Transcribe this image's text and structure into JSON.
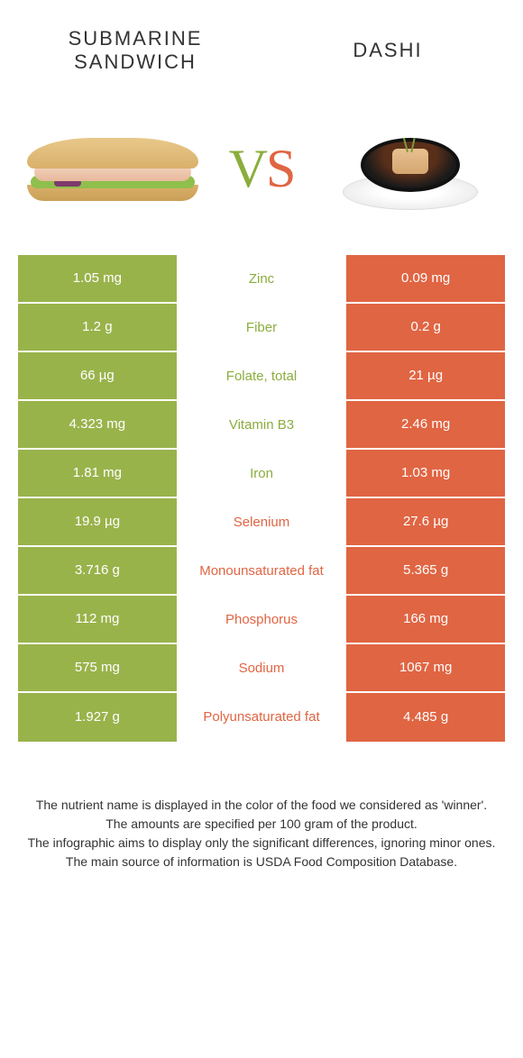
{
  "colors": {
    "left": "#99b34b",
    "right": "#e06543",
    "left_text": "#8aad3c",
    "right_text": "#e06543"
  },
  "header": {
    "left_title": "SUBMARINE SANDWICH",
    "right_title": "DASHI",
    "vs_v": "V",
    "vs_s": "S"
  },
  "rows": [
    {
      "left": "1.05 mg",
      "label": "Zinc",
      "right": "0.09 mg",
      "winner": "left"
    },
    {
      "left": "1.2 g",
      "label": "Fiber",
      "right": "0.2 g",
      "winner": "left"
    },
    {
      "left": "66 µg",
      "label": "Folate, total",
      "right": "21 µg",
      "winner": "left"
    },
    {
      "left": "4.323 mg",
      "label": "Vitamin B3",
      "right": "2.46 mg",
      "winner": "left"
    },
    {
      "left": "1.81 mg",
      "label": "Iron",
      "right": "1.03 mg",
      "winner": "left"
    },
    {
      "left": "19.9 µg",
      "label": "Selenium",
      "right": "27.6 µg",
      "winner": "right"
    },
    {
      "left": "3.716 g",
      "label": "Monounsaturated fat",
      "right": "5.365 g",
      "winner": "right"
    },
    {
      "left": "112 mg",
      "label": "Phosphorus",
      "right": "166 mg",
      "winner": "right"
    },
    {
      "left": "575 mg",
      "label": "Sodium",
      "right": "1067 mg",
      "winner": "right"
    },
    {
      "left": "1.927 g",
      "label": "Polyunsaturated fat",
      "right": "4.485 g",
      "winner": "right"
    }
  ],
  "footnote": {
    "l1": "The nutrient name is displayed in the color of the food we considered as 'winner'.",
    "l2": "The amounts are specified per 100 gram of the product.",
    "l3": "The infographic aims to display only the significant differences, ignoring minor ones.",
    "l4": "The main source of information is USDA Food Composition Database."
  }
}
